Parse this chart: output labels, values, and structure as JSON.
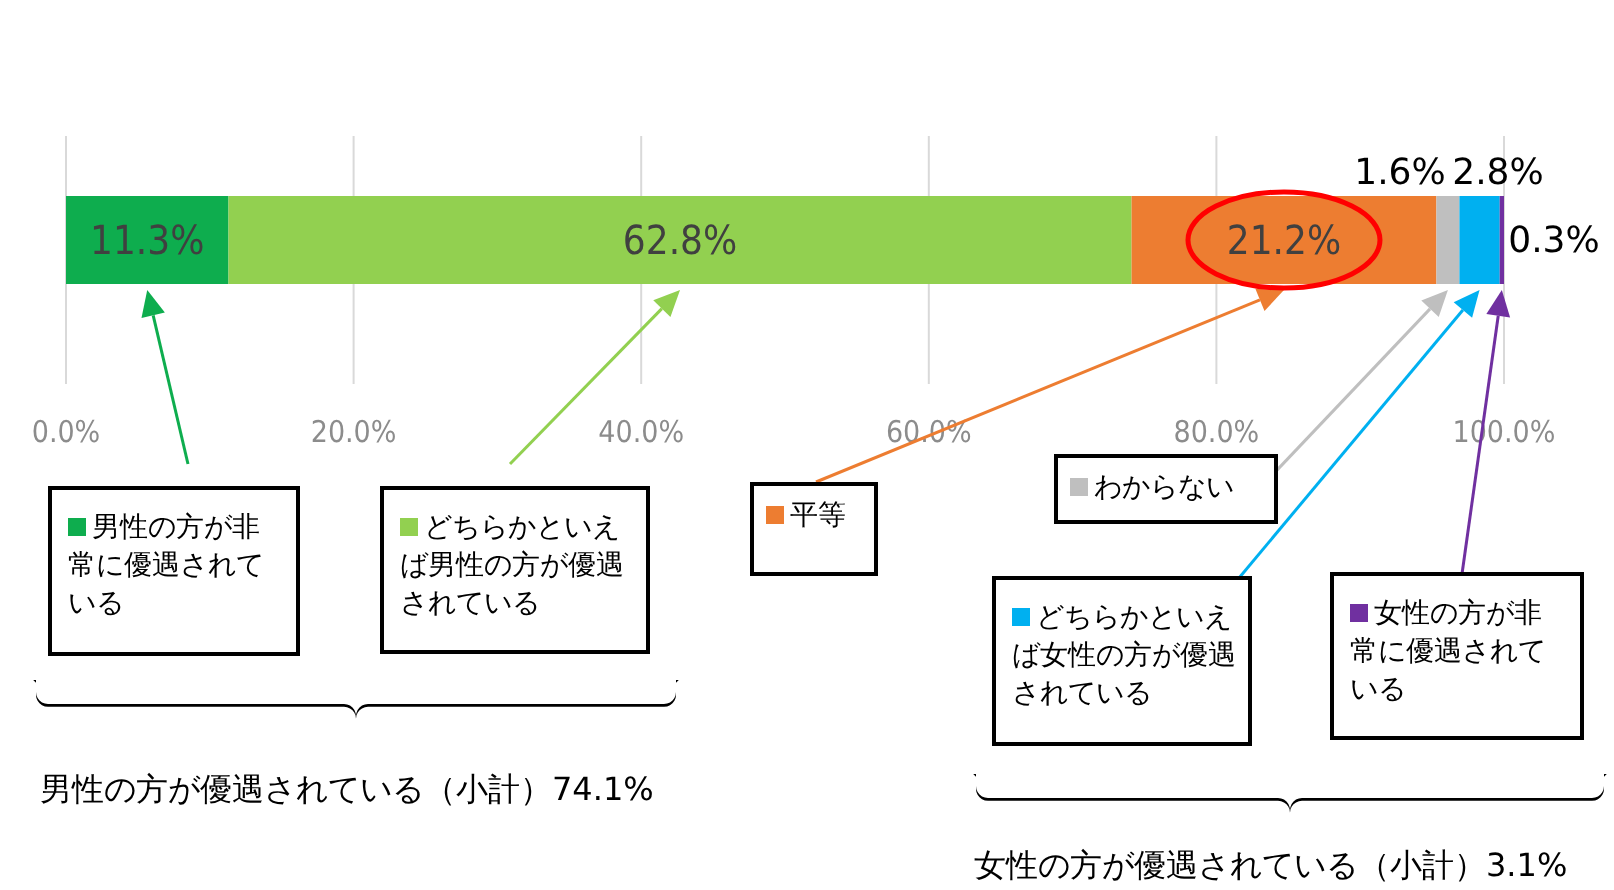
{
  "chart_data": {
    "type": "bar",
    "orientation": "horizontal",
    "stacked": true,
    "categories": [
      null
    ],
    "series": [
      {
        "name": "男性の方が非常に優遇されている",
        "color": "#0ead4e",
        "values": [
          11.3
        ],
        "value_labels": [
          "11.3%"
        ]
      },
      {
        "name": "どちらかといえば男性の方が優遇されている",
        "color": "#92d050",
        "values": [
          62.8
        ],
        "value_labels": [
          "62.8%"
        ]
      },
      {
        "name": "平等",
        "color": "#ed7d31",
        "values": [
          21.2
        ],
        "value_labels": [
          "21.2%"
        ]
      },
      {
        "name": "わからない",
        "color": "#bfbfbf",
        "values": [
          1.6
        ],
        "value_labels": [
          "1.6%"
        ]
      },
      {
        "name": "どちらかといえば女性の方が優遇されている",
        "color": "#00b0f0",
        "values": [
          2.8
        ],
        "value_labels": [
          "2.8%"
        ]
      },
      {
        "name": "女性の方が非常に優遇されている",
        "color": "#7030a0",
        "values": [
          0.3
        ],
        "value_labels": [
          "0.3%"
        ]
      }
    ],
    "xlim": [
      0,
      100
    ],
    "xticks": [
      {
        "value": 0,
        "label": "0.0%"
      },
      {
        "value": 20,
        "label": "20.0%"
      },
      {
        "value": 40,
        "label": "40.0%"
      },
      {
        "value": 60,
        "label": "60.0%"
      },
      {
        "value": 80,
        "label": "80.0%"
      },
      {
        "value": 100,
        "label": "100.0%"
      }
    ],
    "grid": "x",
    "legend": "bottom",
    "annotations": [
      "男性の方が優遇されている（小計）74.1%",
      "女性の方が優遇されている（小計）3.1%"
    ]
  }
}
